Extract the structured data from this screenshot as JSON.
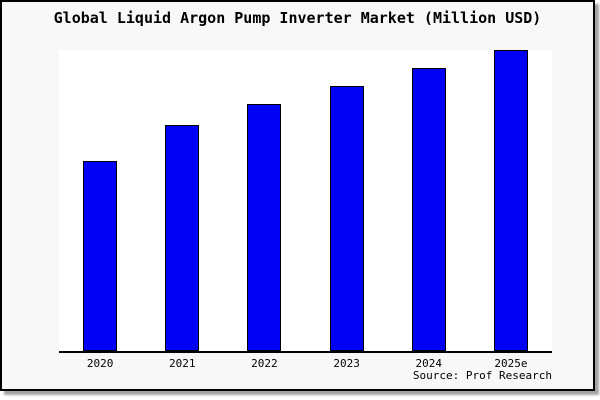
{
  "chart_data": {
    "type": "bar",
    "title": "Global Liquid Argon Pump Inverter Market (Million USD)",
    "categories": [
      "2020",
      "2021",
      "2022",
      "2023",
      "2024",
      "2025e"
    ],
    "values": [
      63,
      75,
      82,
      88,
      94,
      100
    ],
    "xlabel": "",
    "ylabel": "",
    "ylim": [
      0,
      100
    ],
    "grid": false,
    "legend": false,
    "value_axis_shown": false,
    "source": "Source: Prof Research"
  },
  "colors": {
    "bar_fill": "#0000f5",
    "bar_border": "#000000",
    "card_background": "#f8f8f8",
    "plot_background": "#ffffff",
    "axis": "#000000",
    "text": "#000000"
  }
}
